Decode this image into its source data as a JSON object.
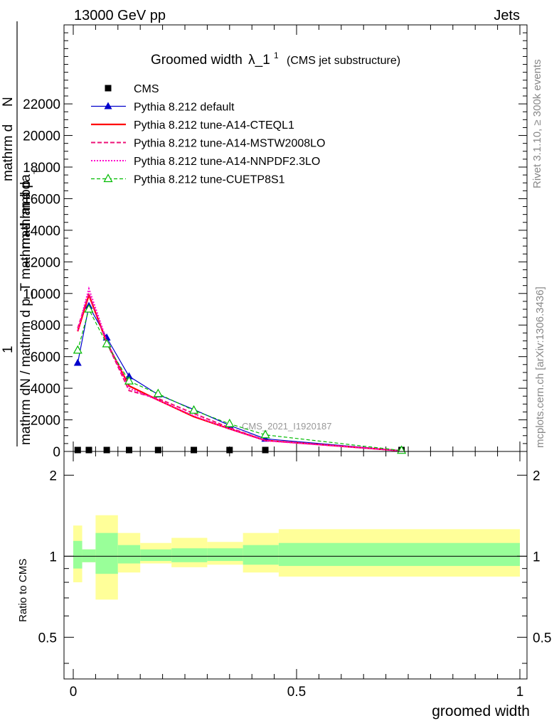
{
  "header": {
    "energy_label": "13000 GeV pp",
    "category_label": "Jets",
    "plot_title": "Groomed width",
    "plot_title_math": "λ_1",
    "plot_title_sup": "1",
    "plot_subtitle": "(CMS jet substructure)"
  },
  "side_labels": {
    "rivet": "Rivet 3.1.10, ≥ 300k events",
    "mcplots": "mcplots.cern.ch [arXiv:1306.3436]"
  },
  "watermark": "CMS_2021_I1920187",
  "axis_labels": {
    "y_main_numerator_1": "mathrm d",
    "y_main_numerator_2": "N",
    "y_main_denominator": "mathrm dN / mathrm d p_T mathrm d lambda",
    "y_main_extra": "mathrm d p",
    "y_main_sub": "T",
    "y_main_one": "1",
    "y_ratio": "Ratio to CMS",
    "x": "groomed width"
  },
  "colors": {
    "cms": "#000000",
    "default": "#0000cc",
    "a14_cteql1": "#ff0000",
    "a14_mstw": "#ee1177",
    "a14_nnpdf": "#ff00cc",
    "cuetp8s1": "#00bb00",
    "band_inner": "#99ff99",
    "band_outer": "#ffff99"
  },
  "chart_data": [
    {
      "type": "line",
      "panel": "main",
      "ylim": [
        0,
        27000
      ],
      "xlim": [
        -0.02,
        1.02
      ],
      "y_ticks": [
        0,
        2000,
        4000,
        6000,
        8000,
        10000,
        12000,
        14000,
        16000,
        18000,
        20000,
        22000
      ],
      "y_tick_labels": [
        "0",
        "2000",
        "4000",
        "6000",
        "8000",
        "10000",
        "12000",
        "14000",
        "16000",
        "18000",
        "20000",
        "22000"
      ],
      "x": [
        0.01,
        0.035,
        0.075,
        0.125,
        0.19,
        0.27,
        0.35,
        0.43,
        0.735
      ],
      "series": [
        {
          "name": "CMS",
          "marker": "square",
          "values": [
            0,
            0,
            0,
            0,
            0,
            0,
            0,
            0,
            0
          ]
        },
        {
          "name": "Pythia 8.212 default",
          "marker": "triangle-filled",
          "values": [
            5600,
            9200,
            7200,
            4750,
            3600,
            2650,
            1650,
            800,
            50
          ]
        },
        {
          "name": "Pythia 8.212 tune-A14-CTEQL1",
          "marker": "none",
          "values": [
            7600,
            9900,
            6900,
            4150,
            3250,
            2200,
            1430,
            700,
            40
          ]
        },
        {
          "name": "Pythia 8.212 tune-A14-MSTW2008LO",
          "marker": "none",
          "values": [
            7800,
            10000,
            6900,
            3850,
            3350,
            2400,
            1500,
            700,
            40
          ]
        },
        {
          "name": "Pythia 8.212 tune-A14-NNPDF2.3LO",
          "marker": "none",
          "values": [
            7650,
            10300,
            7000,
            4000,
            3250,
            2250,
            1420,
            680,
            40
          ]
        },
        {
          "name": "Pythia 8.212 tune-CUETP8S1",
          "marker": "triangle-open",
          "values": [
            6400,
            9000,
            6800,
            4450,
            3650,
            2600,
            1750,
            1050,
            60
          ]
        }
      ]
    },
    {
      "type": "area",
      "panel": "ratio",
      "ylim": [
        0.35,
        2.45
      ],
      "y_ticks": [
        0.5,
        1,
        2
      ],
      "y_tick_labels": [
        "0.5",
        "1",
        "2"
      ],
      "x_ticks": [
        0,
        0.5,
        1
      ],
      "x_tick_labels": [
        "0",
        "0.5",
        "1"
      ],
      "bins": [
        {
          "lo": 0.0,
          "hi": 0.02,
          "inner": [
            0.9,
            1.14
          ],
          "outer": [
            0.8,
            1.3
          ]
        },
        {
          "lo": 0.02,
          "hi": 0.05,
          "inner": [
            0.95,
            1.06
          ],
          "outer": [
            0.95,
            1.06
          ]
        },
        {
          "lo": 0.05,
          "hi": 0.1,
          "inner": [
            0.86,
            1.22
          ],
          "outer": [
            0.69,
            1.42
          ]
        },
        {
          "lo": 0.1,
          "hi": 0.15,
          "inner": [
            0.94,
            1.1
          ],
          "outer": [
            0.87,
            1.22
          ]
        },
        {
          "lo": 0.15,
          "hi": 0.22,
          "inner": [
            0.96,
            1.06
          ],
          "outer": [
            0.94,
            1.12
          ]
        },
        {
          "lo": 0.22,
          "hi": 0.3,
          "inner": [
            0.95,
            1.07
          ],
          "outer": [
            0.91,
            1.17
          ]
        },
        {
          "lo": 0.3,
          "hi": 0.38,
          "inner": [
            0.96,
            1.07
          ],
          "outer": [
            0.93,
            1.13
          ]
        },
        {
          "lo": 0.38,
          "hi": 0.46,
          "inner": [
            0.93,
            1.1
          ],
          "outer": [
            0.87,
            1.22
          ]
        },
        {
          "lo": 0.46,
          "hi": 1.0,
          "inner": [
            0.92,
            1.12
          ],
          "outer": [
            0.84,
            1.26
          ]
        }
      ],
      "reference_line": 1
    }
  ]
}
